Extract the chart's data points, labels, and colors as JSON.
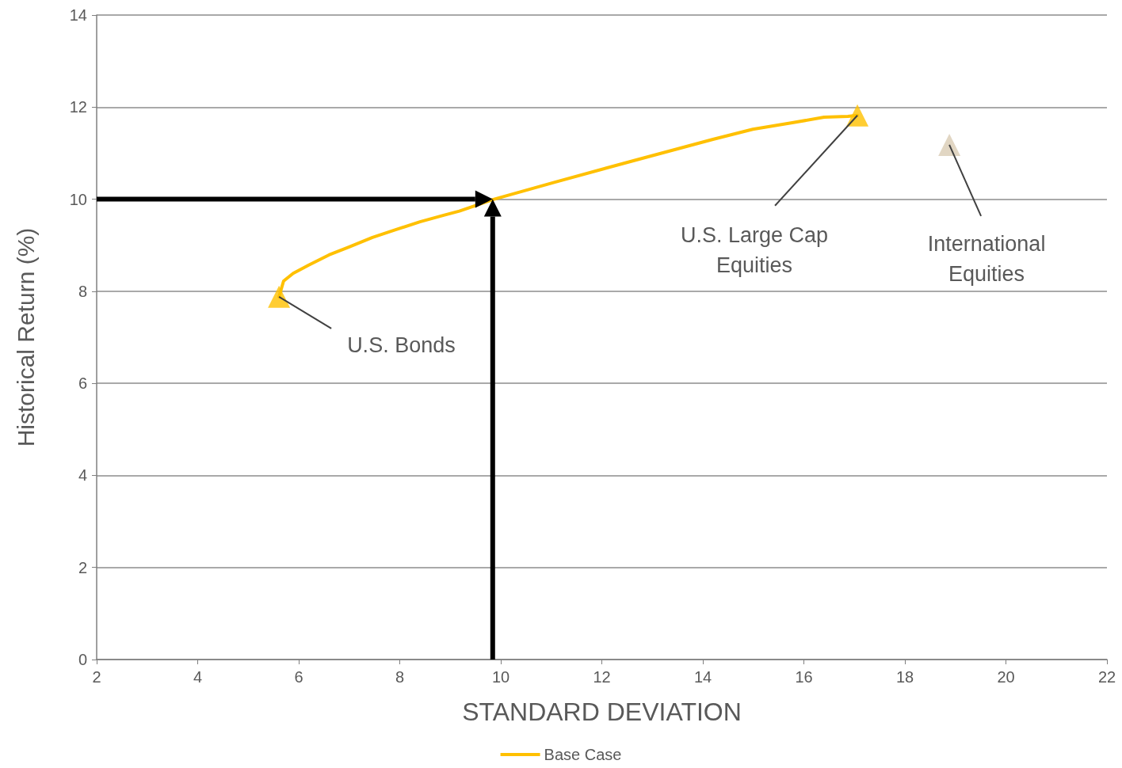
{
  "chart_data": {
    "type": "line",
    "xlabel": "STANDARD DEVIATION",
    "ylabel": "Historical Return (%)",
    "xlim": [
      2,
      22
    ],
    "xticks": [
      2,
      4,
      6,
      8,
      10,
      12,
      14,
      16,
      18,
      20,
      22
    ],
    "ylim": [
      0,
      14
    ],
    "yticks": [
      0,
      2,
      4,
      6,
      8,
      10,
      12,
      14
    ],
    "grid": "y",
    "legend": "bottom",
    "series": [
      {
        "name": "Base Case",
        "color": "#ffc000",
        "marker": "none",
        "x": [
          5.61,
          5.7,
          5.89,
          6.2,
          6.6,
          6.99,
          7.46,
          7.93,
          8.4,
          8.87,
          9.18,
          9.5,
          9.84,
          11.07,
          12.64,
          14.2,
          14.99,
          15.77,
          16.4,
          16.87,
          17.06
        ],
        "values": [
          7.88,
          8.22,
          8.39,
          8.57,
          8.79,
          8.96,
          9.17,
          9.34,
          9.51,
          9.65,
          9.74,
          9.86,
          9.99,
          10.37,
          10.84,
          11.3,
          11.52,
          11.66,
          11.78,
          11.8,
          11.82
        ]
      },
      {
        "type": "scatter",
        "marker": "triangle",
        "colors": [
          "#ffc000",
          "#ffc000",
          "#d9ccb4"
        ],
        "x": [
          5.61,
          17.06,
          18.88
        ],
        "values": [
          7.88,
          11.82,
          11.18
        ]
      }
    ],
    "annotations": [
      {
        "text": "U.S. Bonds",
        "x": 5.61,
        "y": 7.88
      },
      {
        "text": "U.S. Large Cap\nEquities",
        "x": 17.06,
        "y": 11.82
      },
      {
        "text": "International\nEquities",
        "x": 18.88,
        "y": 11.18
      }
    ],
    "ref_lines": [
      {
        "axis": "y",
        "value": 10,
        "color": "#000000"
      },
      {
        "axis": "x",
        "value": 9.84,
        "color": "#000000"
      }
    ]
  }
}
